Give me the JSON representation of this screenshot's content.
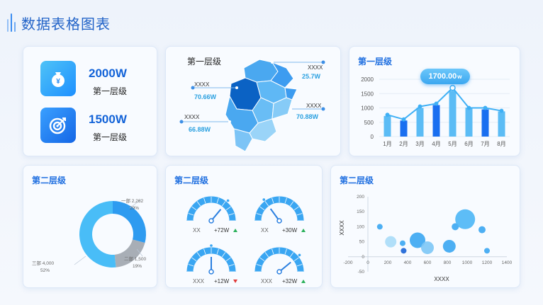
{
  "page": {
    "title": "数据表格图表"
  },
  "kpis": [
    {
      "value": "2000W",
      "label": "第一层级",
      "icon": "money-bag-icon"
    },
    {
      "value": "1500W",
      "label": "第一层级",
      "icon": "target-icon"
    }
  ],
  "map_card": {
    "title": "第一层级",
    "callouts": [
      {
        "name": "XXXX",
        "value": "25.7W"
      },
      {
        "name": "XXXX",
        "value": "70.66W"
      },
      {
        "name": "XXXX",
        "value": "70.88W"
      },
      {
        "name": "XXXX",
        "value": "66.88W"
      }
    ]
  },
  "bar_card": {
    "title": "第一层级",
    "highlight": "1700.00",
    "highlight_unit": "w"
  },
  "donut_card": {
    "title": "第二层级",
    "labels": [
      {
        "line1": "一部  2,262",
        "line2": "29%"
      },
      {
        "line1": "二部  1,500",
        "line2": "19%"
      },
      {
        "line1": "三部  4,000",
        "line2": "52%"
      }
    ]
  },
  "gauge_card": {
    "title": "第二层级",
    "gauges": [
      {
        "name": "XX",
        "value": "+72W",
        "trend": "up",
        "level": 0.72
      },
      {
        "name": "XX",
        "value": "+30W",
        "trend": "up",
        "level": 0.3
      },
      {
        "name": "XXX",
        "value": "+12W",
        "trend": "down",
        "level": 0.5
      },
      {
        "name": "XXX",
        "value": "+32W",
        "trend": "up",
        "level": 0.78
      }
    ]
  },
  "bubble_card": {
    "title": "第二层级"
  },
  "colors": {
    "accent": "#1f6fe0",
    "up": "#2ab05a",
    "down": "#e03a3a",
    "bar_light": "#5bbcf5",
    "bar_dark": "#1a6ff0"
  },
  "chart_data": [
    {
      "type": "bar",
      "categories": [
        "1月",
        "2月",
        "3月",
        "4月",
        "5月",
        "6月",
        "7月",
        "8月"
      ],
      "series": [
        {
          "type": "bar",
          "values": [
            720,
            560,
            1000,
            1100,
            1600,
            1010,
            950,
            880
          ]
        },
        {
          "type": "line",
          "values": [
            760,
            600,
            1050,
            1150,
            1700,
            1000,
            1000,
            900
          ]
        }
      ],
      "yticks": [
        0,
        500,
        1000,
        1500,
        2000
      ],
      "ylim": [
        0,
        2000
      ],
      "highlight_index": 4
    },
    {
      "type": "pie",
      "donut": true,
      "slices": [
        {
          "label": "一部",
          "value": 2262,
          "percent": 29
        },
        {
          "label": "二部",
          "value": 1500,
          "percent": 19
        },
        {
          "label": "三部",
          "value": 4000,
          "percent": 52
        }
      ]
    },
    {
      "type": "scatter",
      "bubble": true,
      "xlabel": "XXXX",
      "ylabel": "XXXX",
      "xlim": [
        -200,
        1400
      ],
      "ylim": [
        -50,
        200
      ],
      "xticks": [
        -200,
        0,
        200,
        400,
        600,
        800,
        1000,
        1200,
        1400
      ],
      "yticks": [
        -50,
        0,
        50,
        100,
        150,
        200
      ],
      "points": [
        {
          "x": 120,
          "y": 100,
          "r": 4
        },
        {
          "x": 230,
          "y": 50,
          "r": 8
        },
        {
          "x": 350,
          "y": 45,
          "r": 4
        },
        {
          "x": 360,
          "y": 20,
          "r": 4
        },
        {
          "x": 500,
          "y": 55,
          "r": 11
        },
        {
          "x": 600,
          "y": 30,
          "r": 9
        },
        {
          "x": 820,
          "y": 35,
          "r": 9
        },
        {
          "x": 880,
          "y": 100,
          "r": 5
        },
        {
          "x": 980,
          "y": 125,
          "r": 14
        },
        {
          "x": 1150,
          "y": 90,
          "r": 5
        },
        {
          "x": 1200,
          "y": 20,
          "r": 4
        }
      ]
    }
  ]
}
